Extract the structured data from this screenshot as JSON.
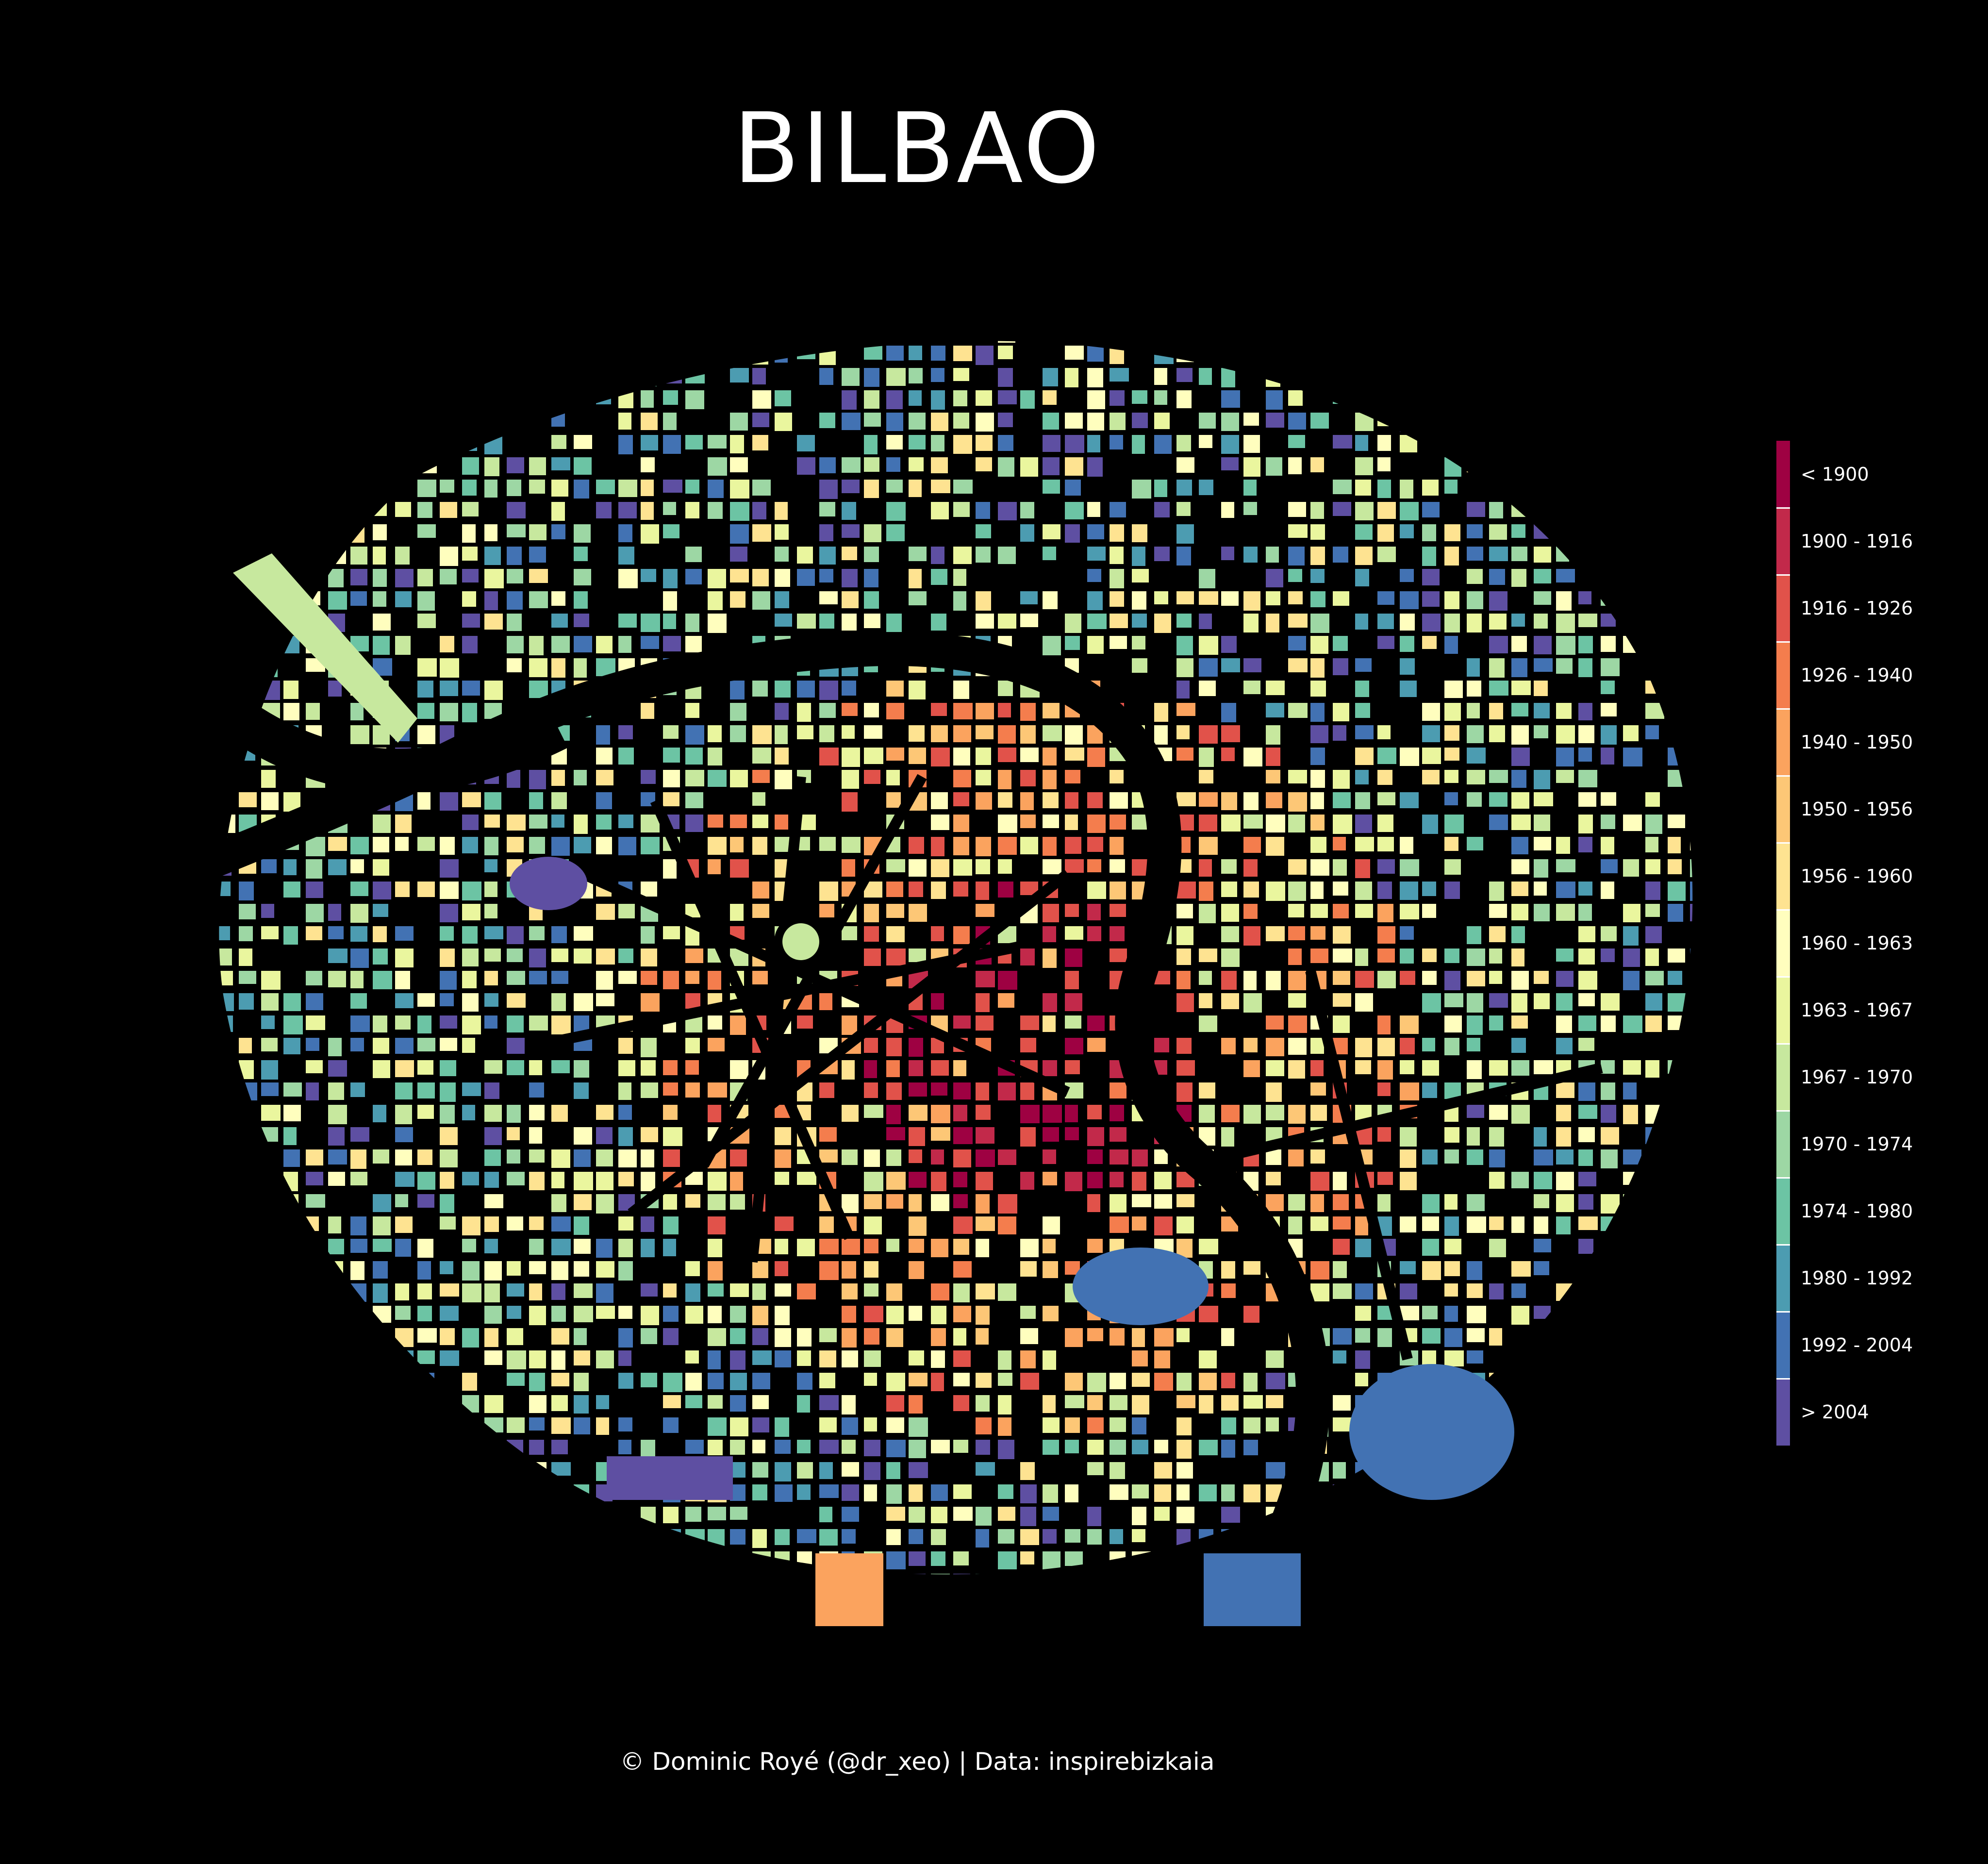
{
  "title": "BILBAO",
  "credit": "© Dominic Royé (@dr_xeo) | Data: inspirebizkaia",
  "legend": {
    "items": [
      {
        "label": "< 1900",
        "color": "#9e0142"
      },
      {
        "label": "1900 - 1916",
        "color": "#c2294a"
      },
      {
        "label": "1916 - 1926",
        "color": "#e1524a"
      },
      {
        "label": "1926 - 1940",
        "color": "#f47d4d"
      },
      {
        "label": "1940 - 1950",
        "color": "#fba35e"
      },
      {
        "label": "1950 - 1956",
        "color": "#fdc776"
      },
      {
        "label": "1956 - 1960",
        "color": "#fee391"
      },
      {
        "label": "1960 - 1963",
        "color": "#fffebe"
      },
      {
        "label": "1963 - 1967",
        "color": "#eaf69e"
      },
      {
        "label": "1967 - 1970",
        "color": "#c7e89e"
      },
      {
        "label": "1970 - 1974",
        "color": "#9dd7a4"
      },
      {
        "label": "1974 - 1980",
        "color": "#6cc4a4"
      },
      {
        "label": "1980 - 1992",
        "color": "#4c9cb1"
      },
      {
        "label": "1992 - 2004",
        "color": "#4272b3"
      },
      {
        "label": "> 2004",
        "color": "#5e4fa2"
      }
    ]
  }
}
